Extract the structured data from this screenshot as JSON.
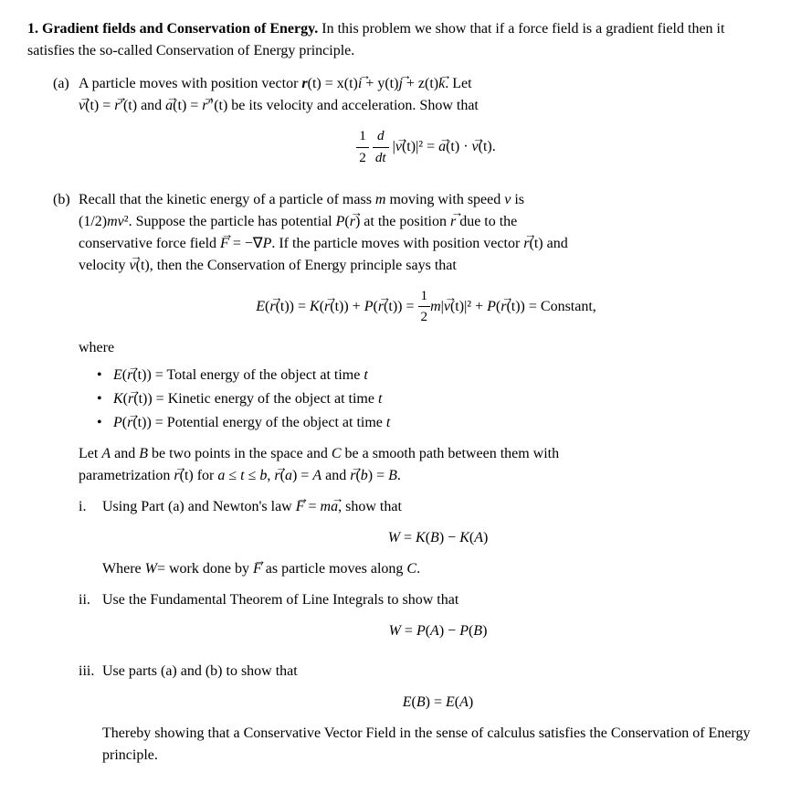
{
  "problem": {
    "number": "1.",
    "title": "Gradient fields and Conservation of Energy.",
    "intro": "In this problem we show that if a force field is a gradient field then it satisfies the so-called Conservation of Energy principle."
  },
  "partA": {
    "label": "(a)",
    "text1": "A particle moves with position vector ",
    "rvec": "r",
    "eq_r": "(t) = x(t)",
    "ivec": "i",
    "plus1": " + y(t)",
    "jvec": "j",
    "plus2": " + z(t)",
    "kvec": "k",
    "period1": ". Let",
    "line2a": "(t) = ",
    "line2b": "′(t) and ",
    "line2c": "(t) = ",
    "line2d": "″(t) be its velocity and acceleration. Show that",
    "vvec": "v",
    "rvec2": "r",
    "avec": "a",
    "eq_lhs_frac_num": "1",
    "eq_lhs_frac_den": "2",
    "eq_lhs_d": "d",
    "eq_lhs_dt": "dt",
    "eq_lhs_v": "v",
    "eq_lhs_sq": "(t)|² = ",
    "eq_rhs_a": "a",
    "eq_rhs_dot": "(t) · ",
    "eq_rhs_v": "v",
    "eq_rhs_end": "(t)."
  },
  "partB": {
    "label": "(b)",
    "line1a": "Recall that the kinetic energy of a particle of mass ",
    "m": "m",
    "line1b": " moving with speed ",
    "v": "v",
    "line1c": " is",
    "line2a": "(1/2)",
    "line2b": "mv",
    "line2c": "². Suppose the particle has potential ",
    "P": "P",
    "line2d": "(",
    "rvec": "r",
    "line2e": ") at the position ",
    "line2f": " due to the",
    "line3a": "conservative force field ",
    "Fvec": "F",
    "line3b": " = −∇",
    "line3c": ". If the particle moves with position vector ",
    "line3d": "(t) and",
    "line4a": "velocity ",
    "vvec": "v",
    "line4b": "(t), then the Conservation of Energy principle says that",
    "eq_E": "E",
    "eq_r1": "r",
    "eq_t1": "(t)) = ",
    "eq_K": "K",
    "eq_r2": "r",
    "eq_t2": "(t)) + ",
    "eq_P": "P",
    "eq_r3": "r",
    "eq_t3": "(t)) = ",
    "eq_frac_num": "1",
    "eq_frac_den": "2",
    "eq_m": "m",
    "eq_v": "v",
    "eq_tsq": "(t)|² + ",
    "eq_P2": "P",
    "eq_r4": "r",
    "eq_t4": "(t)) = Constant,",
    "where": "where",
    "bullet1_E": "E",
    "bullet1_r": "r",
    "bullet1_text": "(t)) = Total energy of the object at time ",
    "bullet1_t": "t",
    "bullet2_K": "K",
    "bullet2_r": "r",
    "bullet2_text": "(t)) = Kinetic energy of the object at time ",
    "bullet2_t": "t",
    "bullet3_P": "P",
    "bullet3_r": "r",
    "bullet3_text": "(t)) = Potential energy of the object at time ",
    "bullet3_t": "t",
    "letAB1": "Let ",
    "A": "A",
    "letAB2": " and ",
    "B": "B",
    "letAB3": " be two points in the space and ",
    "C": "C",
    "letAB4": " be a smooth path between them with",
    "param1": "parametrization ",
    "param_r": "r",
    "param2": "(t) for ",
    "param_a": "a",
    "param3": " ≤ ",
    "param_t": "t",
    "param4": " ≤ ",
    "param_b": "b",
    "param5": ", ",
    "param_r2": "r",
    "param6": "(",
    "param_a2": "a",
    "param7": ") = ",
    "param_A": "A",
    "param8": " and ",
    "param_r3": "r",
    "param9": "(",
    "param_b2": "b",
    "param10": ") = ",
    "param_B": "B",
    "param11": "."
  },
  "subI": {
    "label": "i.",
    "text1": "Using Part (a) and Newton's law ",
    "Fvec": "F",
    "eq": " = ",
    "m": "m",
    "avec": "a",
    "text2": ", show that",
    "eq_W": "W",
    "eq_eq": " = ",
    "eq_K": "K",
    "eq_B": "B",
    "eq_minus": ") − ",
    "eq_K2": "K",
    "eq_A": "A",
    "eq_end": ")",
    "where1": "Where ",
    "where_W": "W",
    "where2": "= work done by ",
    "where_F": "F",
    "where3": " as particle moves along ",
    "where_C": "C",
    "where4": "."
  },
  "subII": {
    "label": "ii.",
    "text": "Use the Fundamental Theorem of Line Integrals to show that",
    "eq_W": "W",
    "eq_eq": " = ",
    "eq_P": "P",
    "eq_A": "A",
    "eq_minus": ") − ",
    "eq_P2": "P",
    "eq_B": "B",
    "eq_end": ")"
  },
  "subIII": {
    "label": "iii.",
    "text": "Use parts (a) and (b) to show that",
    "eq_E": "E",
    "eq_B": "B",
    "eq_eq": ") = ",
    "eq_E2": "E",
    "eq_A": "A",
    "eq_end": ")",
    "conclusion": "Thereby showing that a Conservative Vector Field in the sense of calculus satisfies the Conservation of Energy principle."
  }
}
